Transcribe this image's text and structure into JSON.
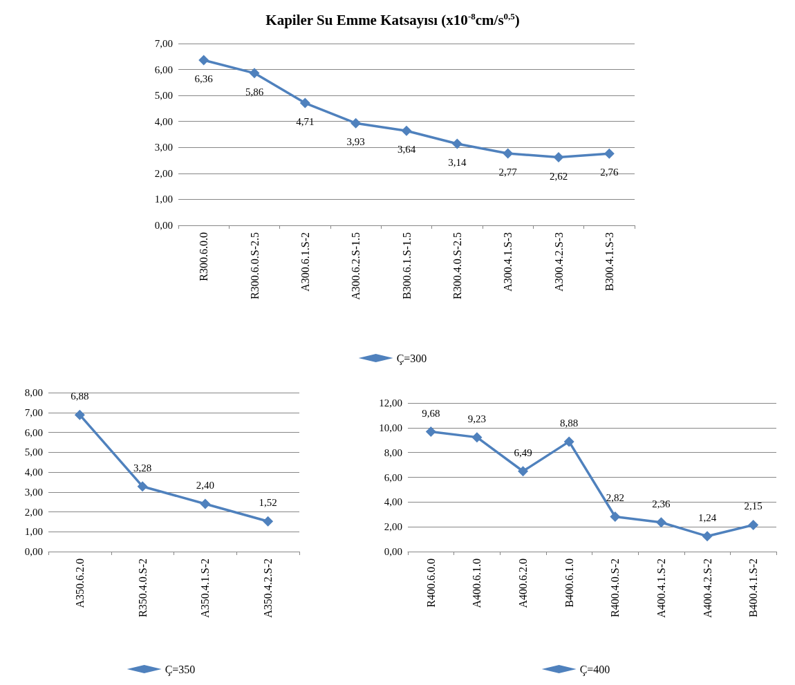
{
  "chart_data": [
    {
      "type": "line",
      "title": "Kapiler Su Emme Katsayısı (x10$^{-8}$cm/s$^{0,5}$)",
      "categories": [
        "R300.6.0.0",
        "R300.6.0.S-2.5",
        "A300.6.1.S-2",
        "A300.6.2.S-1.5",
        "B300.6.1.S-1.5",
        "R300.4.0.S-2.5",
        "A300.4.1.S-3",
        "A300.4.2.S-3",
        "B300.4.1.S-3"
      ],
      "series": [
        {
          "name": "Ç=300",
          "color": "#4f81bd",
          "values": [
            6.36,
            5.86,
            4.71,
            3.93,
            3.64,
            3.14,
            2.77,
            2.62,
            2.76
          ],
          "value_labels": [
            "6,36",
            "5,86",
            "4,71",
            "3,93",
            "3,64",
            "3,14",
            "2,77",
            "2,62",
            "2,76"
          ]
        }
      ],
      "ylim": [
        0,
        7
      ],
      "yticks": [
        {
          "value": 0,
          "label": "0,00"
        },
        {
          "value": 1,
          "label": "1,00"
        },
        {
          "value": 2,
          "label": "2,00"
        },
        {
          "value": 3,
          "label": "3,00"
        },
        {
          "value": 4,
          "label": "4,00"
        },
        {
          "value": 5,
          "label": "5,00"
        },
        {
          "value": 6,
          "label": "6,00"
        },
        {
          "value": 7,
          "label": "7,00"
        }
      ],
      "grid": "y",
      "legend": "bottom",
      "marker": "diamond",
      "line_style": "solid"
    },
    {
      "type": "line",
      "categories": [
        "A350.6.2.0",
        "R350.4.0.S-2",
        "A350.4.1.S-2",
        "A350.4.2.S-2"
      ],
      "series": [
        {
          "name": "Ç=350",
          "color": "#4f81bd",
          "values": [
            6.88,
            3.28,
            2.4,
            1.52
          ],
          "value_labels": [
            "6,88",
            "3,28",
            "2,40",
            "1,52"
          ]
        }
      ],
      "ylim": [
        0,
        8
      ],
      "yticks": [
        {
          "value": 0,
          "label": "0,00"
        },
        {
          "value": 1,
          "label": "1,00"
        },
        {
          "value": 2,
          "label": "2,00"
        },
        {
          "value": 3,
          "label": "3,00"
        },
        {
          "value": 4,
          "label": "4,00"
        },
        {
          "value": 5,
          "label": "5,00"
        },
        {
          "value": 6,
          "label": "6,00"
        },
        {
          "value": 7,
          "label": "7,00"
        },
        {
          "value": 8,
          "label": "8,00"
        }
      ],
      "grid": "y",
      "legend": "bottom",
      "marker": "diamond",
      "line_style": "solid"
    },
    {
      "type": "line",
      "categories": [
        "R400.6.0.0",
        "A400.6.1.0",
        "A400.6.2.0",
        "B400.6.1.0",
        "R400.4.0.S-2",
        "A400.4.1.S-2",
        "A400.4.2.S-2",
        "B400.4.1.S-2"
      ],
      "series": [
        {
          "name": "Ç=400",
          "color": "#4f81bd",
          "values": [
            9.68,
            9.23,
            6.49,
            8.88,
            2.82,
            2.36,
            1.24,
            2.15
          ],
          "value_labels": [
            "9,68",
            "9,23",
            "6,49",
            "8,88",
            "2,82",
            "2,36",
            "1,24",
            "2,15"
          ]
        }
      ],
      "ylim": [
        0,
        12
      ],
      "yticks": [
        {
          "value": 0,
          "label": "0,00"
        },
        {
          "value": 2,
          "label": "2,00"
        },
        {
          "value": 4,
          "label": "4,00"
        },
        {
          "value": 6,
          "label": "6,00"
        },
        {
          "value": 8,
          "label": "8,00"
        },
        {
          "value": 10,
          "label": "10,00"
        },
        {
          "value": 12,
          "label": "12,00"
        }
      ],
      "grid": "y",
      "legend": "bottom",
      "marker": "diamond",
      "line_style": "solid"
    }
  ]
}
